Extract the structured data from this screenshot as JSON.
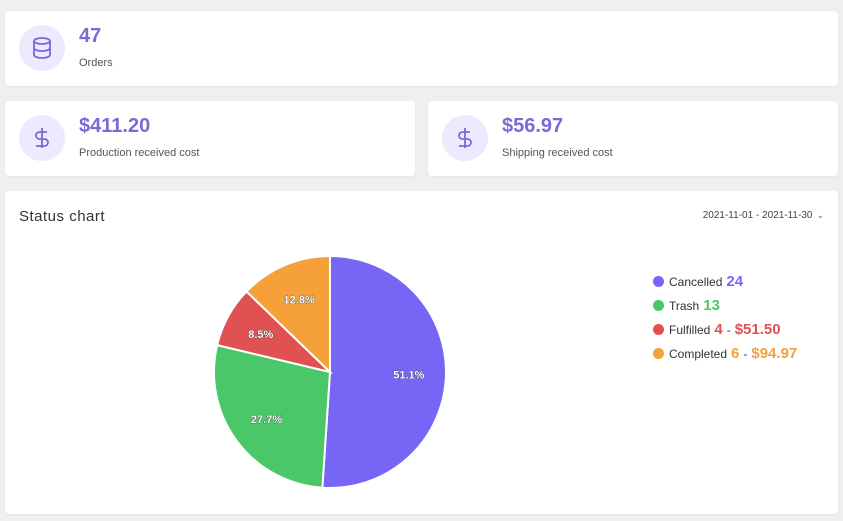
{
  "stats": {
    "orders": {
      "value": "47",
      "label": "Orders",
      "icon": "database-icon"
    },
    "production": {
      "value": "$411.20",
      "label": "Production received cost",
      "icon": "dollar-icon"
    },
    "shipping": {
      "value": "$56.97",
      "label": "Shipping received cost",
      "icon": "dollar-icon"
    }
  },
  "status_chart": {
    "title": "Status chart",
    "date_range": "2021-11-01 - 2021-11-30",
    "legend": [
      {
        "name": "Cancelled",
        "count": "24",
        "amount": "",
        "color": "#7766f5"
      },
      {
        "name": "Trash",
        "count": "13",
        "amount": "",
        "color": "#4ac769"
      },
      {
        "name": "Fulfilled",
        "count": "4",
        "amount": "$51.50",
        "color": "#e05252"
      },
      {
        "name": "Completed",
        "count": "6",
        "amount": "$94.97",
        "color": "#f6a03a"
      }
    ]
  },
  "chart_data": {
    "type": "pie",
    "categories": [
      "Cancelled",
      "Trash",
      "Fulfilled",
      "Completed"
    ],
    "values": [
      51.1,
      27.7,
      8.5,
      12.8
    ],
    "labels": [
      "51.1%",
      "27.7%",
      "8.5%",
      "12.8%"
    ],
    "colors": [
      "#7766f5",
      "#4ac769",
      "#e05252",
      "#f6a03a"
    ],
    "legend": "right"
  }
}
